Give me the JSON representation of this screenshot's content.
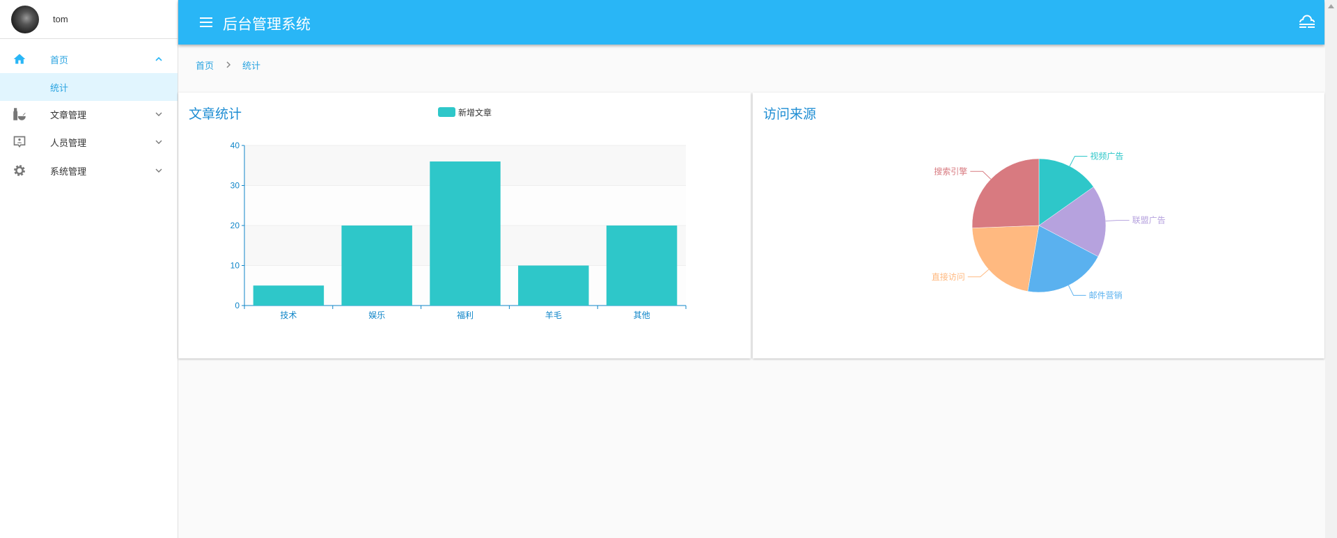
{
  "user": {
    "name": "tom"
  },
  "sidebar": {
    "items": [
      {
        "label": "首页",
        "icon": "home-icon",
        "expanded": true
      },
      {
        "label": "统计",
        "active": true
      },
      {
        "label": "文章管理",
        "icon": "bottle-icon"
      },
      {
        "label": "人员管理",
        "icon": "contact-icon"
      },
      {
        "label": "系统管理",
        "icon": "gear-icon"
      }
    ]
  },
  "header": {
    "title": "后台管理系统",
    "menu_icon": "hamburger-icon",
    "right_icon": "weather-fog-icon",
    "color": "#29b6f6"
  },
  "breadcrumb": {
    "items": [
      "首页",
      "统计"
    ]
  },
  "chart_data": [
    {
      "type": "bar",
      "title": "文章统计",
      "legend": [
        "新增文章"
      ],
      "legend_position": "top-center",
      "categories": [
        "技术",
        "娱乐",
        "福利",
        "羊毛",
        "其他"
      ],
      "series": [
        {
          "name": "新增文章",
          "values": [
            5,
            20,
            36,
            10,
            20
          ]
        }
      ],
      "ylim": [
        0,
        40
      ],
      "yticks": [
        "0",
        "10",
        "20",
        "30",
        "40"
      ],
      "color": "#2ec7c9",
      "grid": true
    },
    {
      "type": "pie",
      "title": "访问来源",
      "slices": [
        {
          "name": "视频广告",
          "value": 15.2,
          "color": "#2ec7c9"
        },
        {
          "name": "联盟广告",
          "value": 17.5,
          "color": "#b6a2de"
        },
        {
          "name": "邮件营销",
          "value": 20.0,
          "color": "#5ab1ef"
        },
        {
          "name": "直接访问",
          "value": 21.7,
          "color": "#ffb980"
        },
        {
          "name": "搜索引擎",
          "value": 25.6,
          "color": "#d87a80"
        }
      ]
    }
  ]
}
